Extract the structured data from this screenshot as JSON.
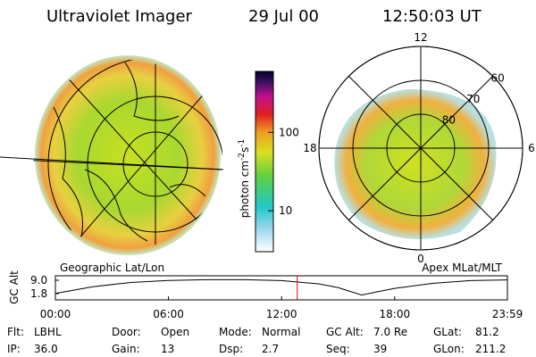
{
  "header": {
    "title": "Ultraviolet Imager",
    "date": "29 Jul 00",
    "time": "12:50:03 UT"
  },
  "left_panel": {
    "label": "Geographic Lat/Lon"
  },
  "right_panel": {
    "label": "Apex MLat/MLT",
    "mlt_ticks": [
      12,
      18,
      6,
      0
    ],
    "lat_lim": [
      90,
      60
    ],
    "lat_ticks": [
      60,
      70,
      80
    ]
  },
  "colorbar": {
    "label": [
      "photon cm",
      "-2",
      "s",
      "-1"
    ],
    "log_scale": true,
    "lim": [
      3,
      600
    ],
    "ticks": [
      10,
      100
    ]
  },
  "timeline": {
    "ylabel": "GC Alt",
    "yticks": [
      {
        "value": 9.0,
        "label": "9.0"
      },
      1.8
    ],
    "ylim": [
      -1.6,
      11.4
    ],
    "xlim": [
      0,
      23.98
    ],
    "xticks": [
      {
        "value": 0,
        "label": "00:00"
      },
      {
        "value": 6,
        "label": "06:00"
      },
      {
        "value": 12,
        "label": "12:00"
      },
      {
        "value": 18,
        "label": "18:00"
      },
      {
        "value": 23.98,
        "label": "23:59"
      }
    ],
    "x": [
      0,
      2,
      4,
      6,
      8,
      10,
      12,
      14,
      15,
      16.25,
      17,
      18,
      20,
      22,
      23.98
    ],
    "values": [
      1.9,
      5.5,
      7.8,
      8.9,
      9.3,
      9.3,
      8.8,
      7.0,
      5.0,
      1.0,
      2.6,
      4.6,
      7.3,
      8.8,
      9.2
    ],
    "current": 12.83,
    "current_color": "#e00000"
  },
  "info": {
    "rows": [
      [
        [
          "Flt:",
          "LBHL"
        ],
        [
          "Door:",
          "Open"
        ],
        [
          "Mode:",
          "Normal"
        ],
        [
          "GC Alt:",
          "7.0 Re"
        ],
        [
          "GLat:",
          "81.2"
        ]
      ],
      [
        [
          "IP:",
          "36.0"
        ],
        [
          "Gain:",
          "13"
        ],
        [
          "Dsp:",
          "2.7"
        ],
        [
          "Seq:",
          "39"
        ],
        [
          "GLon:",
          "211.2"
        ]
      ]
    ]
  }
}
